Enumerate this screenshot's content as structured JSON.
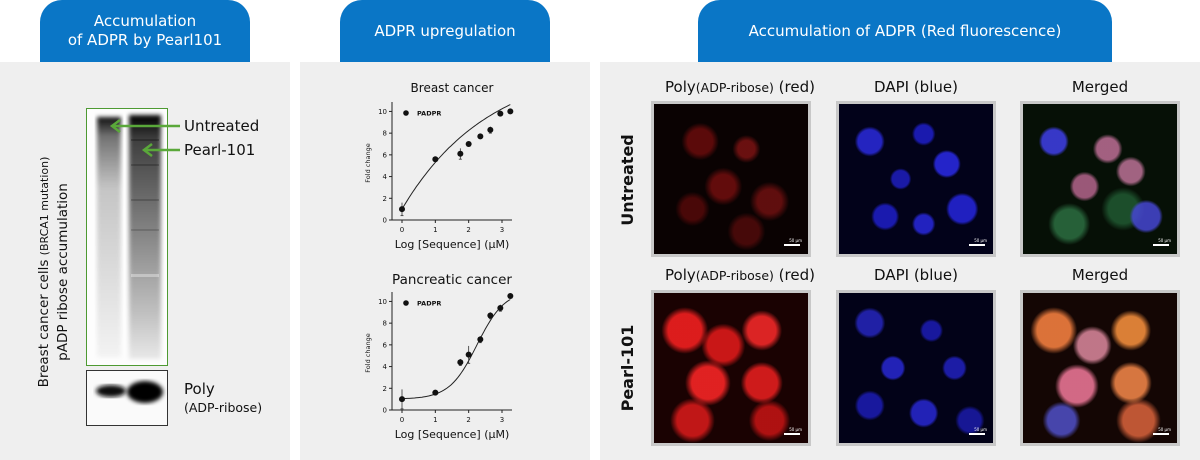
{
  "left": {
    "tab": [
      "Accumulation",
      "of ADPR by Pearl101"
    ],
    "ylabel_line1_a": "Breast cancer cells ",
    "ylabel_line1_b": "(BRCA1 mutation)",
    "ylabel_line2": "pADP ribose accumulation",
    "arrow1_label": "Untreated",
    "arrow2_label": "Pearl-101",
    "blot2_label": [
      "Poly",
      "(ADP-ribose)"
    ]
  },
  "middle": {
    "tab": "ADPR upregulation"
  },
  "right": {
    "tab": "Accumulation of ADPR (Red fluorescence)",
    "row_labels": [
      "Untreated",
      "Pearl-101"
    ],
    "col_labels": [
      {
        "a": "Poly",
        "b": "(ADP-ribose)",
        "c": " (red)"
      },
      {
        "a": "DAPI (blue)",
        "b": "",
        "c": ""
      },
      {
        "a": "Merged",
        "b": "",
        "c": ""
      }
    ],
    "scale_text": "50 μm"
  },
  "chart_data": [
    {
      "type": "scatter",
      "title": "Breast cancer",
      "xlabel": "Log [Sequence] (μM)",
      "ylabel": "Fold change",
      "legend": "PADPR",
      "legend_position": "top-left",
      "xlim": [
        -0.3,
        3.3
      ],
      "ylim": [
        0,
        10.5
      ],
      "xticks": [
        "0",
        "1",
        "2",
        "3"
      ],
      "yticks": [
        "0",
        "2",
        "4",
        "6",
        "8",
        "10"
      ],
      "x": [
        0,
        1,
        1.75,
        2,
        2.35,
        2.65,
        2.95,
        3.25
      ],
      "y": [
        1.0,
        5.6,
        6.1,
        7.0,
        7.7,
        8.3,
        9.8,
        10.0
      ],
      "error": [
        0.6,
        0.2,
        0.5,
        0.2,
        0.2,
        0.3,
        0.2,
        0.2
      ],
      "fit": "saturating"
    },
    {
      "type": "scatter",
      "title": "Pancreatic cancer",
      "xlabel": "Log [Sequence] (μM)",
      "ylabel": "Fold change",
      "legend": "PADPR",
      "legend_position": "top-left",
      "xlim": [
        -0.3,
        3.3
      ],
      "ylim": [
        0,
        10.5
      ],
      "xticks": [
        "0",
        "1",
        "2",
        "3"
      ],
      "yticks": [
        "0",
        "2",
        "4",
        "6",
        "8",
        "10"
      ],
      "x": [
        0,
        1,
        1.75,
        2,
        2.35,
        2.65,
        2.95,
        3.25
      ],
      "y": [
        1.0,
        1.6,
        4.4,
        5.1,
        6.5,
        8.7,
        9.4,
        10.5
      ],
      "error": [
        0.9,
        0.2,
        0.3,
        0.8,
        0.3,
        0.3,
        0.3,
        0.2
      ],
      "fit": "sigmoid"
    }
  ]
}
